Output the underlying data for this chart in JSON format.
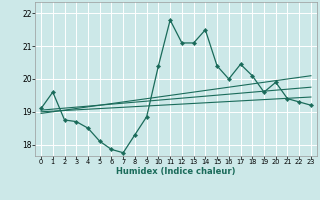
{
  "title": "",
  "xlabel": "Humidex (Indice chaleur)",
  "bg_color": "#cce8e8",
  "grid_color": "#ffffff",
  "line_color": "#1a6b5a",
  "xlim": [
    -0.5,
    23.5
  ],
  "ylim": [
    17.65,
    22.35
  ],
  "yticks": [
    18,
    19,
    20,
    21,
    22
  ],
  "xticks": [
    0,
    1,
    2,
    3,
    4,
    5,
    6,
    7,
    8,
    9,
    10,
    11,
    12,
    13,
    14,
    15,
    16,
    17,
    18,
    19,
    20,
    21,
    22,
    23
  ],
  "main_line_x": [
    0,
    1,
    2,
    3,
    4,
    5,
    6,
    7,
    8,
    9,
    10,
    11,
    12,
    13,
    14,
    15,
    16,
    17,
    18,
    19,
    20,
    21,
    22,
    23
  ],
  "main_line_y": [
    19.1,
    19.6,
    18.75,
    18.7,
    18.5,
    18.1,
    17.85,
    17.75,
    18.3,
    18.85,
    20.4,
    21.8,
    21.1,
    21.1,
    21.5,
    20.4,
    20.0,
    20.45,
    20.1,
    19.6,
    19.9,
    19.4,
    19.3,
    19.2
  ],
  "trend1_x": [
    0,
    23
  ],
  "trend1_y": [
    19.0,
    19.45
  ],
  "trend2_x": [
    0,
    23
  ],
  "trend2_y": [
    19.05,
    19.75
  ],
  "trend3_x": [
    0,
    23
  ],
  "trend3_y": [
    18.95,
    20.1
  ]
}
